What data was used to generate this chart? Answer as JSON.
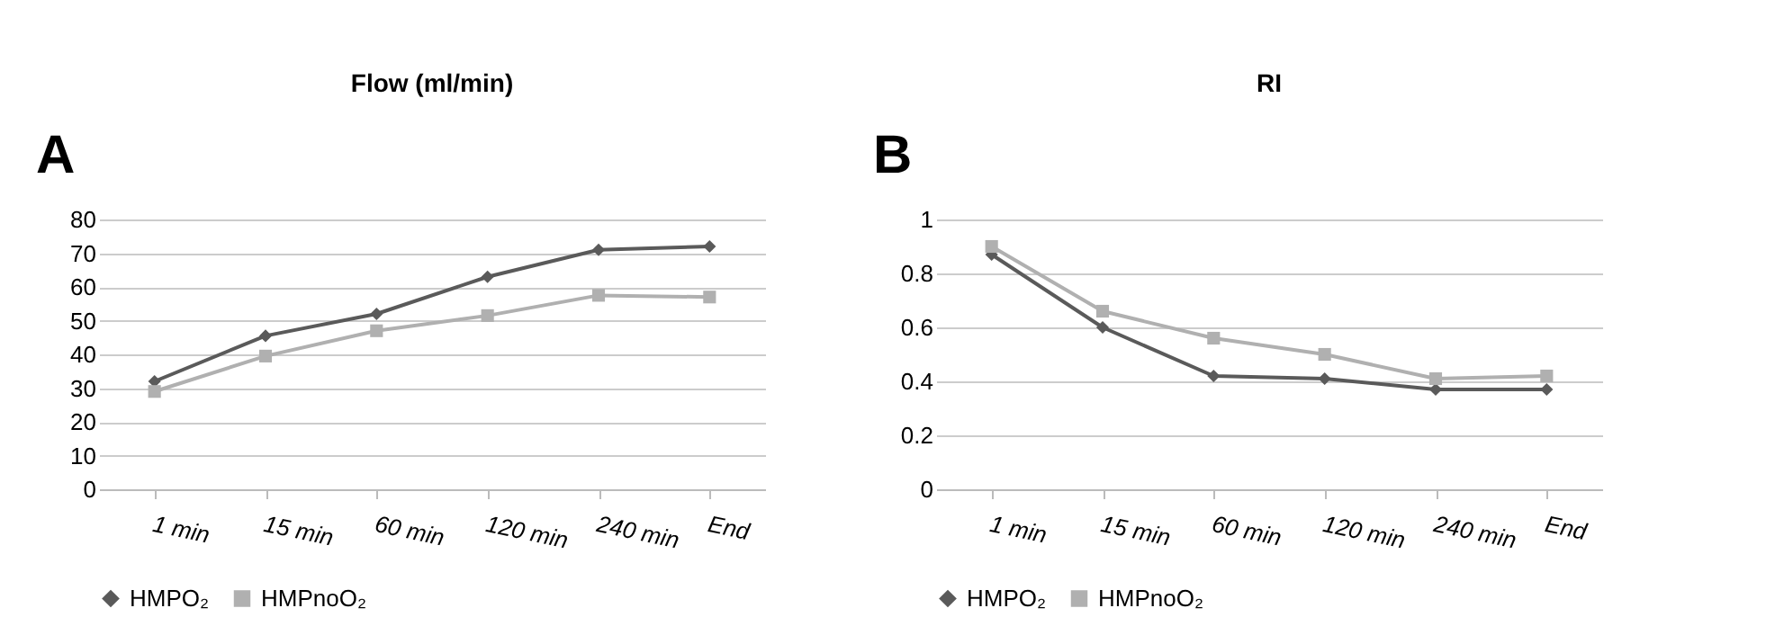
{
  "chart_data": [
    {
      "type": "line",
      "title": "Flow (ml/min)",
      "annotations": [
        "A"
      ],
      "categories": [
        "1 min",
        "15 min",
        "60 min",
        "120 min",
        "240 min",
        "End"
      ],
      "ylim": [
        0,
        80
      ],
      "yticks": [
        0,
        10,
        20,
        30,
        40,
        50,
        60,
        70,
        80
      ],
      "grid": "y",
      "legend": "bottom",
      "series": [
        {
          "name": "HMPO₂",
          "color": "#5a5a5a",
          "marker": "diamond",
          "values": [
            32,
            45.5,
            52,
            63,
            71,
            72
          ]
        },
        {
          "name": "HMPnoO₂",
          "color": "#b0b0b0",
          "marker": "square",
          "values": [
            29,
            39.5,
            47,
            51.5,
            57.5,
            57
          ]
        }
      ]
    },
    {
      "type": "line",
      "title": "RI",
      "annotations": [
        "B"
      ],
      "categories": [
        "1 min",
        "15 min",
        "60 min",
        "120 min",
        "240 min",
        "End"
      ],
      "ylim": [
        0,
        1
      ],
      "yticks": [
        0,
        0.2,
        0.4,
        0.6,
        0.8,
        1
      ],
      "grid": "y",
      "legend": "bottom",
      "series": [
        {
          "name": "HMPO₂",
          "color": "#5a5a5a",
          "marker": "diamond",
          "values": [
            0.87,
            0.6,
            0.42,
            0.41,
            0.37,
            0.37
          ]
        },
        {
          "name": "HMPnoO₂",
          "color": "#b0b0b0",
          "marker": "square",
          "values": [
            0.9,
            0.66,
            0.56,
            0.5,
            0.41,
            0.42
          ]
        }
      ]
    }
  ]
}
